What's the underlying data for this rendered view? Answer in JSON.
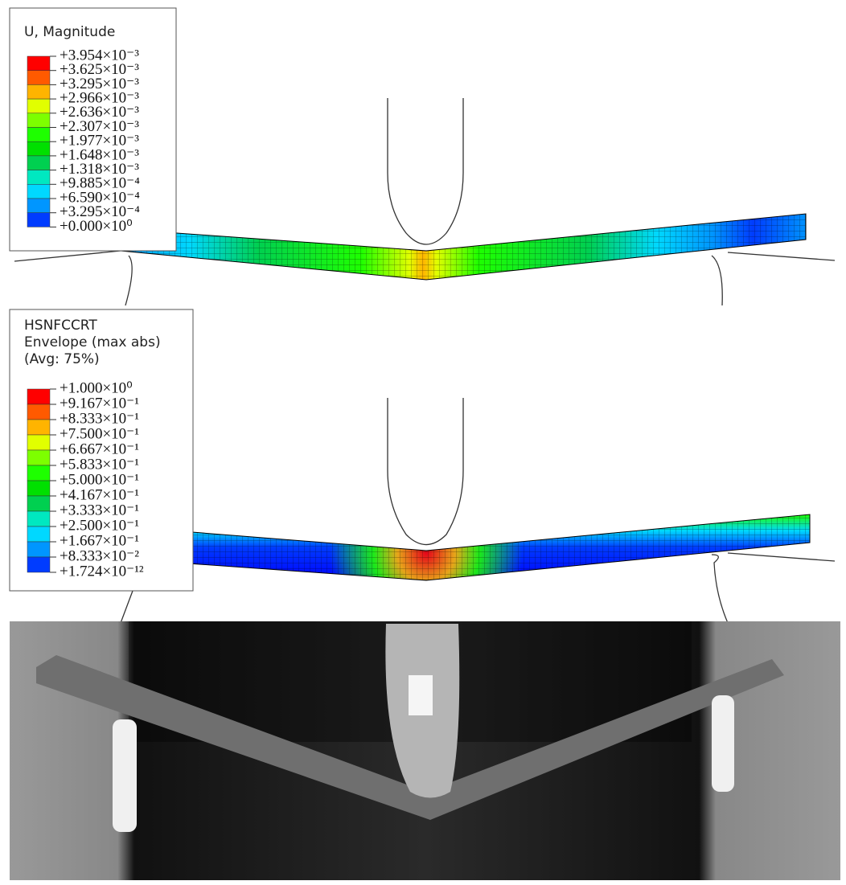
{
  "panels": [
    {
      "legend": {
        "title": [
          "U, Magnitude"
        ],
        "labels": [
          "+3.954×10⁻³",
          "+3.625×10⁻³",
          "+3.295×10⁻³",
          "+2.966×10⁻³",
          "+2.636×10⁻³",
          "+2.307×10⁻³",
          "+1.977×10⁻³",
          "+1.648×10⁻³",
          "+1.318×10⁻³",
          "+9.885×10⁻⁴",
          "+6.590×10⁻⁴",
          "+3.295×10⁻⁴",
          "+0.000×10⁰"
        ]
      }
    },
    {
      "legend": {
        "title": [
          "HSNFCCRT",
          "Envelope (max abs)",
          "(Avg: 75%)"
        ],
        "labels": [
          "+1.000×10⁰",
          "+9.167×10⁻¹",
          "+8.333×10⁻¹",
          "+7.500×10⁻¹",
          "+6.667×10⁻¹",
          "+5.833×10⁻¹",
          "+5.000×10⁻¹",
          "+4.167×10⁻¹",
          "+3.333×10⁻¹",
          "+2.500×10⁻¹",
          "+1.667×10⁻¹",
          "+8.333×10⁻²",
          "+1.724×10⁻¹²"
        ]
      }
    }
  ],
  "legend_colors": [
    "#ff0000",
    "#ff5a00",
    "#ffb400",
    "#e1ff00",
    "#7dff00",
    "#1eff00",
    "#00e000",
    "#00d050",
    "#00e8c0",
    "#00d8ff",
    "#0096ff",
    "#003cff",
    "#0000ff"
  ]
}
